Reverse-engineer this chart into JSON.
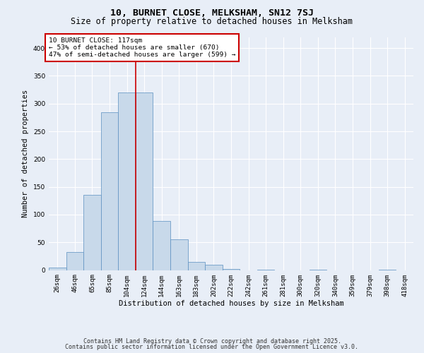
{
  "title1": "10, BURNET CLOSE, MELKSHAM, SN12 7SJ",
  "title2": "Size of property relative to detached houses in Melksham",
  "xlabel": "Distribution of detached houses by size in Melksham",
  "ylabel": "Number of detached properties",
  "categories": [
    "26sqm",
    "46sqm",
    "65sqm",
    "85sqm",
    "104sqm",
    "124sqm",
    "144sqm",
    "163sqm",
    "183sqm",
    "202sqm",
    "222sqm",
    "242sqm",
    "261sqm",
    "281sqm",
    "300sqm",
    "320sqm",
    "340sqm",
    "359sqm",
    "379sqm",
    "398sqm",
    "418sqm"
  ],
  "values": [
    5,
    33,
    136,
    285,
    320,
    320,
    88,
    56,
    15,
    9,
    2,
    0,
    1,
    0,
    0,
    1,
    0,
    0,
    0,
    1,
    0
  ],
  "bar_color": "#c8d9ea",
  "bar_edge_color": "#5a8fc0",
  "bar_edge_width": 0.5,
  "property_line_x": 4.5,
  "property_line_color": "#cc0000",
  "annotation_line1": "10 BURNET CLOSE: 117sqm",
  "annotation_line2": "← 53% of detached houses are smaller (670)",
  "annotation_line3": "47% of semi-detached houses are larger (599) →",
  "annotation_box_color": "#ffffff",
  "annotation_box_edge_color": "#cc0000",
  "ylim": [
    0,
    420
  ],
  "yticks": [
    0,
    50,
    100,
    150,
    200,
    250,
    300,
    350,
    400
  ],
  "footer1": "Contains HM Land Registry data © Crown copyright and database right 2025.",
  "footer2": "Contains public sector information licensed under the Open Government Licence v3.0.",
  "bg_color": "#e8eef7",
  "plot_bg_color": "#e8eef7",
  "grid_color": "#ffffff",
  "title_fontsize": 9.5,
  "subtitle_fontsize": 8.5,
  "axis_label_fontsize": 7.5,
  "tick_fontsize": 6.5,
  "annotation_fontsize": 6.8,
  "footer_fontsize": 6.0
}
